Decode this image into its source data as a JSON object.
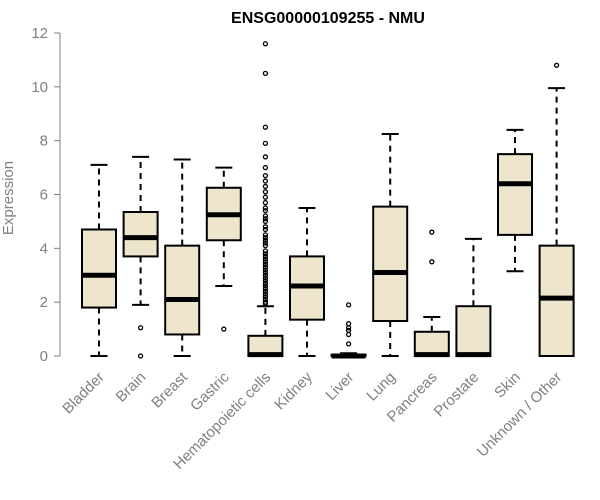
{
  "chart_data": {
    "type": "boxplot",
    "title": "ENSG00000109255 - NMU",
    "xlabel": "",
    "ylabel": "Expression",
    "ylim": [
      0,
      12
    ],
    "yticks": [
      0,
      2,
      4,
      6,
      8,
      10,
      12
    ],
    "box_color": "#ede6cd",
    "categories": [
      "Bladder",
      "Brain",
      "Breast",
      "Gastric",
      "Hematopoietic cells",
      "Kidney",
      "Liver",
      "Lung",
      "Pancreas",
      "Prostate",
      "Skin",
      "Unknown / Other"
    ],
    "boxes": [
      {
        "whisker_low": 0.0,
        "q1": 1.8,
        "median": 3.0,
        "q3": 4.7,
        "whisker_high": 7.1,
        "outliers": []
      },
      {
        "whisker_low": 1.9,
        "q1": 3.7,
        "median": 4.4,
        "q3": 5.35,
        "whisker_high": 7.4,
        "outliers": [
          1.05,
          0.0
        ]
      },
      {
        "whisker_low": 0.0,
        "q1": 0.8,
        "median": 2.1,
        "q3": 4.1,
        "whisker_high": 7.3,
        "outliers": []
      },
      {
        "whisker_low": 2.6,
        "q1": 4.3,
        "median": 5.25,
        "q3": 6.25,
        "whisker_high": 7.0,
        "outliers": [
          1.0
        ]
      },
      {
        "whisker_low": 0.0,
        "q1": 0.0,
        "median": 0.05,
        "q3": 0.75,
        "whisker_high": 1.85,
        "outliers": [
          11.6,
          10.5,
          8.5,
          7.9,
          7.4,
          7.0,
          6.7,
          6.5,
          6.3,
          6.1,
          5.9,
          5.7,
          5.5,
          5.4,
          5.2,
          5.1,
          5.0,
          4.8,
          4.7,
          4.5,
          4.4,
          4.3,
          4.2,
          4.1,
          3.9,
          3.8,
          3.7,
          3.6,
          3.5,
          3.4,
          3.3,
          3.2,
          3.1,
          3.0,
          2.9,
          2.8,
          2.7,
          2.6,
          2.5,
          2.4,
          2.3,
          2.2,
          2.1,
          2.0,
          1.95
        ]
      },
      {
        "whisker_low": 0.0,
        "q1": 1.35,
        "median": 2.6,
        "q3": 3.7,
        "whisker_high": 5.5,
        "outliers": []
      },
      {
        "whisker_low": 0.0,
        "q1": 0.0,
        "median": 0.0,
        "q3": 0.05,
        "whisker_high": 0.1,
        "outliers": [
          1.9,
          1.2,
          1.05,
          0.95,
          0.8,
          0.45
        ]
      },
      {
        "whisker_low": 0.0,
        "q1": 1.3,
        "median": 3.1,
        "q3": 5.55,
        "whisker_high": 8.25,
        "outliers": []
      },
      {
        "whisker_low": 0.0,
        "q1": 0.0,
        "median": 0.05,
        "q3": 0.9,
        "whisker_high": 1.45,
        "outliers": [
          4.6,
          3.5
        ]
      },
      {
        "whisker_low": 0.0,
        "q1": 0.0,
        "median": 0.05,
        "q3": 1.85,
        "whisker_high": 4.35,
        "outliers": []
      },
      {
        "whisker_low": 3.15,
        "q1": 4.5,
        "median": 6.4,
        "q3": 7.5,
        "whisker_high": 8.4,
        "outliers": []
      },
      {
        "whisker_low": 0.0,
        "q1": 0.0,
        "median": 2.15,
        "q3": 4.1,
        "whisker_high": 9.95,
        "outliers": [
          10.8
        ]
      }
    ]
  }
}
